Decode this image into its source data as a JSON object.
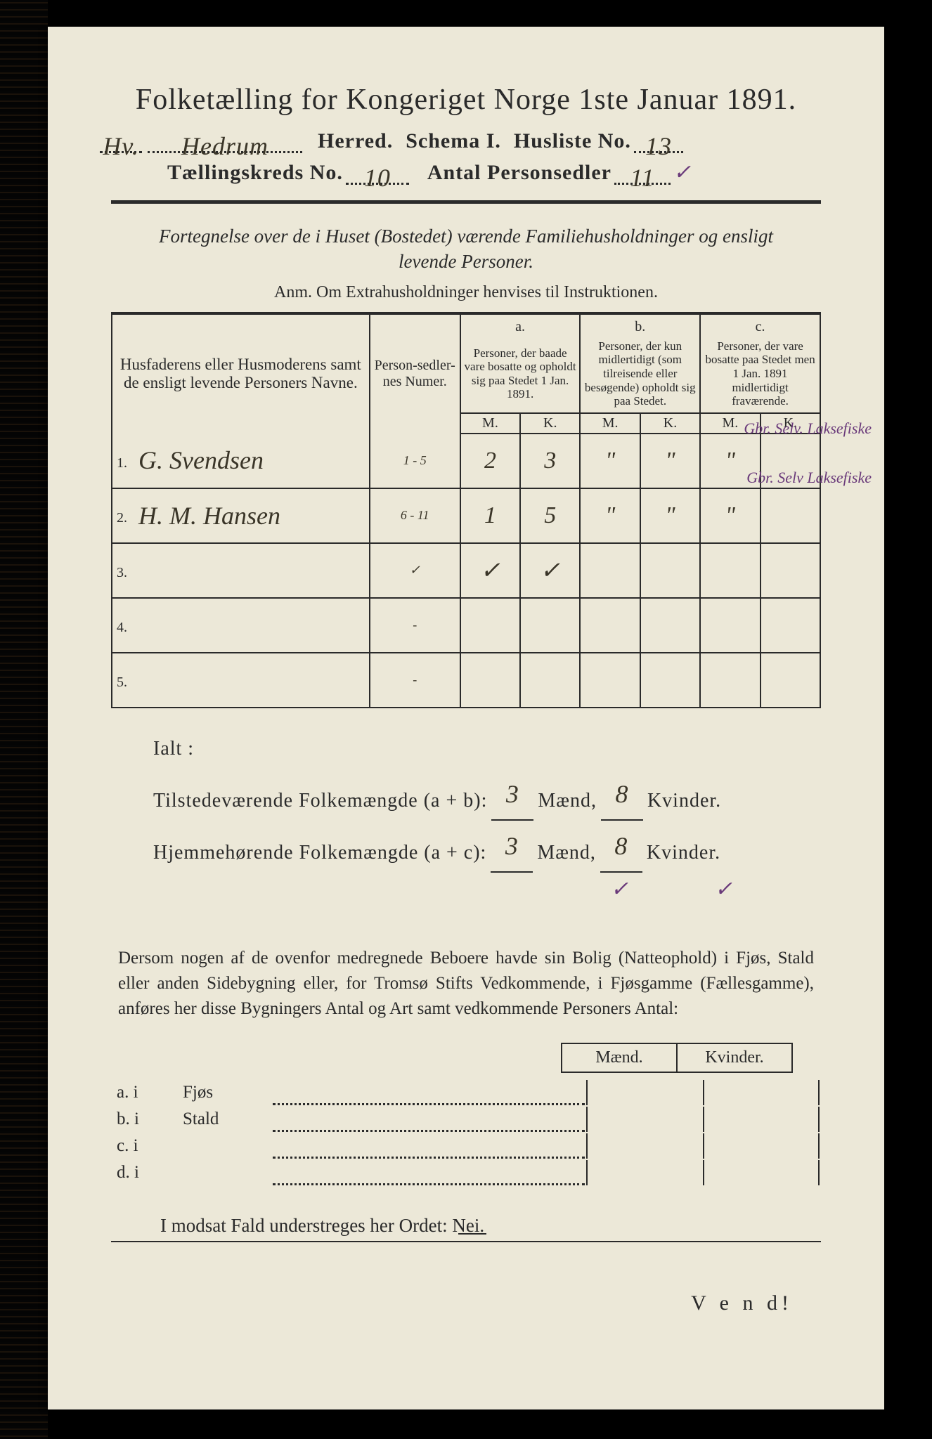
{
  "title": "Folketælling for Kongeriget Norge 1ste Januar 1891.",
  "header": {
    "herred_hand": "Hedrum",
    "herred_prefix_hand": "Hv.",
    "label_herred": "Herred.",
    "label_schema": "Schema I.",
    "label_husliste": "Husliste No.",
    "husliste_no": "13",
    "label_kreds": "Tællingskreds No.",
    "kreds_no": "10",
    "label_antal": "Antal Personsedler",
    "antal": "11",
    "antal_check": "✓"
  },
  "subtitle": "Fortegnelse over de i Huset (Bostedet) værende Familiehusholdninger og ensligt levende Personer.",
  "anm": "Anm.   Om Extrahusholdninger henvises til Instruktionen.",
  "table": {
    "col_name": "Husfaderens eller Husmoderens samt de ensligt levende Personers Navne.",
    "col_num": "Person-sedler-nes Numer.",
    "col_a_label": "a.",
    "col_a": "Personer, der baade vare bosatte og opholdt sig paa Stedet 1 Jan. 1891.",
    "col_b_label": "b.",
    "col_b": "Personer, der kun midlertidigt (som tilreisende eller besøgende) opholdt sig paa Stedet.",
    "col_c_label": "c.",
    "col_c": "Personer, der vare bosatte paa Stedet men 1 Jan. 1891 midlertidigt fraværende.",
    "mk_m": "M.",
    "mk_k": "K.",
    "rows": [
      {
        "idx": "1.",
        "name": "G. Svendsen",
        "num": "1 - 5",
        "a_m": "2",
        "a_k": "3",
        "b_m": "\"",
        "b_k": "\"",
        "c_m": "\"",
        "c_k": "",
        "note": "Gbr. Selv. Laksefiske"
      },
      {
        "idx": "2.",
        "name": "H. M. Hansen",
        "num": "6 - 11",
        "a_m": "1",
        "a_k": "5",
        "b_m": "\"",
        "b_k": "\"",
        "c_m": "\"",
        "c_k": "",
        "note": "Gbr. Selv Laksefiske"
      },
      {
        "idx": "3.",
        "name": "",
        "num": "✓",
        "a_m": "✓",
        "a_k": "✓",
        "b_m": "",
        "b_k": "",
        "c_m": "",
        "c_k": "",
        "note": ""
      },
      {
        "idx": "4.",
        "name": "",
        "num": "-",
        "a_m": "",
        "a_k": "",
        "b_m": "",
        "b_k": "",
        "c_m": "",
        "c_k": "",
        "note": ""
      },
      {
        "idx": "5.",
        "name": "",
        "num": "-",
        "a_m": "",
        "a_k": "",
        "b_m": "",
        "b_k": "",
        "c_m": "",
        "c_k": "",
        "note": ""
      }
    ]
  },
  "totals": {
    "ialt": "Ialt :",
    "line1_label": "Tilstedeværende Folkemængde (a + b):",
    "line2_label": "Hjemmehørende Folkemængde (a + c):",
    "maend": "Mænd,",
    "kvinder": "Kvinder.",
    "l1_m": "3",
    "l1_k": "8",
    "l2_m": "3",
    "l2_k": "8",
    "check_m": "✓",
    "check_k": "✓"
  },
  "paragraph": "Dersom nogen af de ovenfor medregnede Beboere havde sin Bolig (Natteophold) i Fjøs, Stald eller anden Sidebygning eller, for Tromsø Stifts Vedkommende, i Fjøsgamme (Fællesgamme), anføres her disse Bygningers Antal og Art samt vedkommende Personers Antal:",
  "lower": {
    "head_m": "Mænd.",
    "head_k": "Kvinder.",
    "rows": [
      {
        "label": "a.  i",
        "text": "Fjøs"
      },
      {
        "label": "b.  i",
        "text": "Stald"
      },
      {
        "label": "c.  i",
        "text": ""
      },
      {
        "label": "d.  i",
        "text": ""
      }
    ]
  },
  "nei": "I modsat Fald understreges her Ordet: Nei.",
  "vend": "V e n d!",
  "colors": {
    "paper": "#ece8d8",
    "ink": "#2a2a2a",
    "hand": "#3a3528",
    "purple": "#6a3a7a",
    "background": "#000000"
  }
}
